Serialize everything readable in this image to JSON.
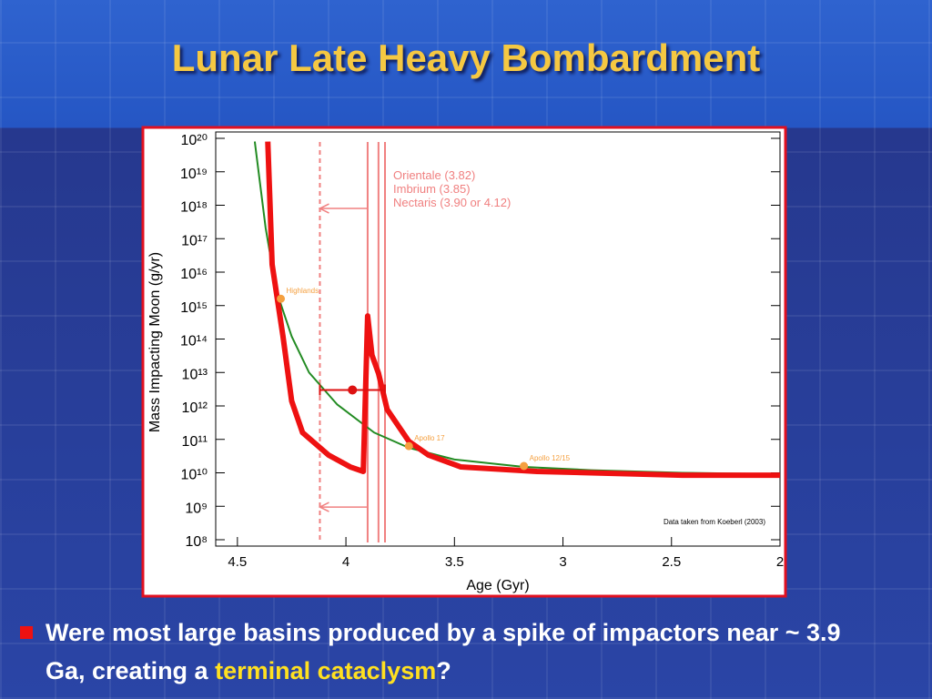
{
  "title": "Lunar Late Heavy Bombardment",
  "chart_data": {
    "type": "line",
    "y_label": "Mass Impacting Moon (g/yr)",
    "x_label": "Age (Gyr)",
    "xlim": [
      4.6,
      2
    ],
    "xticks": [
      4.5,
      4,
      3.5,
      3,
      2.5,
      2
    ],
    "ylim": [
      100000000.0,
      1e+20
    ],
    "log_y": true,
    "yticks": [
      {
        "value": 100000000.0,
        "label": "10⁸"
      },
      {
        "value": 1000000000.0,
        "label": "10⁹"
      },
      {
        "value": 10000000000.0,
        "label": "10¹⁰"
      },
      {
        "value": 100000000000.0,
        "label": "10¹¹"
      },
      {
        "value": 1000000000000.0,
        "label": "10¹²"
      },
      {
        "value": 10000000000000.0,
        "label": "10¹³"
      },
      {
        "value": 100000000000000.0,
        "label": "10¹⁴"
      },
      {
        "value": 1000000000000000.0,
        "label": "10¹⁵"
      },
      {
        "value": 1e+16,
        "label": "10¹⁶"
      },
      {
        "value": 1e+17,
        "label": "10¹⁷"
      },
      {
        "value": 1e+18,
        "label": "10¹⁸"
      },
      {
        "value": 1e+19,
        "label": "10¹⁹"
      },
      {
        "value": 1e+20,
        "label": "10²⁰"
      }
    ],
    "series": [
      {
        "color": "#228b22",
        "width": 2,
        "x": [
          4.42,
          4.37,
          4.32,
          4.25,
          4.17,
          4.04,
          3.87,
          3.71,
          3.5,
          3.18,
          2.87,
          2.45,
          2.0
        ],
        "values": [
          8e+19,
          2.1e+17,
          2700000000000000.0,
          120000000000000.0,
          10000000000000.0,
          1100000000000.0,
          160000000000.0,
          56000000000.0,
          25000000000.0,
          15000000000.0,
          12000000000.0,
          10000000000.0,
          9100000000.0
        ]
      },
      {
        "color": "#ee1111",
        "width": 6,
        "x": [
          4.36,
          4.34,
          4.29,
          4.25,
          4.2,
          4.08,
          3.98,
          3.92,
          3.9,
          3.88,
          3.85,
          3.81,
          3.71,
          3.62,
          3.47,
          3.12,
          2.45,
          2.0
        ],
        "values": [
          8e+19,
          1.7e+16,
          120000000000000.0,
          1400000000000.0,
          160000000000.0,
          34000000000.0,
          15000000000.0,
          11000000000.0,
          490000000000000.0,
          33000000000000.0,
          9500000000000.0,
          780000000000.0,
          87000000000.0,
          34000000000.0,
          15000000000.0,
          11000000000.0,
          8500000000.0,
          8500000000.0
        ]
      }
    ],
    "points": [
      {
        "label": "Highlands",
        "x": 4.3,
        "y": 1600000000000000.0,
        "color": "#f5a040"
      },
      {
        "label": "Apollo 17",
        "x": 3.71,
        "y": 63000000000.0,
        "color": "#f5a040"
      },
      {
        "label": "Apollo 12/15",
        "x": 3.18,
        "y": 16000000000.0,
        "color": "#f5a040"
      }
    ],
    "error_points": [
      {
        "x": 3.97,
        "y": 3000000000000.0,
        "x_range": [
          4.12,
          3.82
        ],
        "color": "#dd1111"
      }
    ],
    "vlines": [
      {
        "x": 3.82
      },
      {
        "x": 3.85
      },
      {
        "x": 3.9
      },
      {
        "x": 4.12,
        "dashed": true
      }
    ],
    "line_color": "#f08080",
    "arrows": [
      {
        "from": 3.9,
        "to": 4.12,
        "y": 8e+17
      },
      {
        "from": 3.9,
        "to": 4.12,
        "y": 950000000.0
      }
    ],
    "basin_labels": [
      "Orientale (3.82)",
      "Imbrium (3.85)",
      "Nectaris (3.90 or 4.12)"
    ],
    "note": "Data taken from Koeberl (2003)"
  },
  "bullet": {
    "text": "Were most large basins produced by a spike of impactors near ~ 3.9 Ga, creating a",
    "highlight": "terminal cataclysm",
    "end": "?"
  }
}
